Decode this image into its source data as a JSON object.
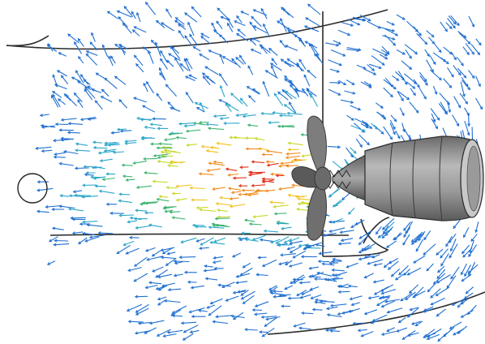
{
  "figure": {
    "description_free": true,
    "colors": {
      "background": "#ffffff",
      "outline": "#2b2b2b",
      "propeller": "#7d7d7d",
      "propeller_dark": "#4a4a4a",
      "nacelle_light": "#b9b9b9",
      "nacelle_mid": "#8f8f8f",
      "nacelle_dark": "#5e5e5e",
      "flow_scale": [
        "#1f6fd0",
        "#2aa6c9",
        "#3cb371",
        "#c8d92a",
        "#f2c21c",
        "#f08a1c",
        "#e0331c"
      ]
    },
    "icons": {
      "flow_vectors": "arrow-field",
      "rotation_marker": "circle-marker"
    }
  }
}
